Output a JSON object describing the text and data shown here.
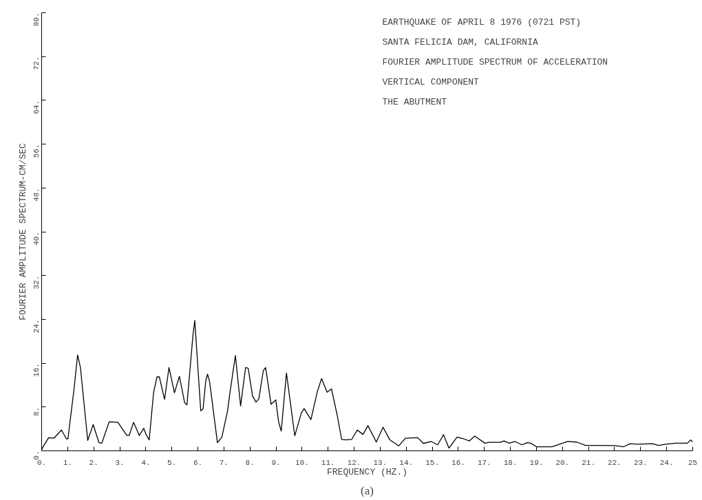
{
  "chart_data": {
    "type": "line",
    "xlabel": "FREQUENCY (HZ.)",
    "ylabel": "FOURIER AMPLITUDE SPECTRUM-CM/SEC",
    "annotations": [
      "EARTHQUAKE OF APRIL 8 1976 (0721 PST)",
      "SANTA FELICIA DAM, CALIFORNIA",
      "FOURIER AMPLITUDE SPECTRUM OF ACCELERATION",
      "VERTICAL COMPONENT",
      "THE ABUTMENT",
      "(a)"
    ],
    "series": [
      {
        "color": "#000000",
        "x": [
          0.0,
          0.05,
          0.27,
          0.47,
          0.76,
          0.95,
          1.01,
          1.25,
          1.38,
          1.49,
          1.77,
          1.98,
          2.2,
          2.31,
          2.59,
          2.7,
          2.93,
          3.27,
          3.36,
          3.53,
          3.75,
          3.92,
          4.0,
          4.13,
          4.3,
          4.43,
          4.52,
          4.69,
          4.72,
          4.89,
          5.1,
          5.29,
          5.49,
          5.58,
          5.81,
          5.88,
          6.11,
          6.2,
          6.3,
          6.37,
          6.45,
          6.75,
          6.92,
          7.14,
          7.22,
          7.44,
          7.64,
          7.83,
          7.93,
          8.1,
          8.23,
          8.34,
          8.51,
          8.6,
          8.81,
          8.99,
          9.1,
          9.2,
          9.4,
          9.72,
          9.97,
          10.08,
          10.34,
          10.58,
          10.75,
          10.96,
          11.13,
          11.35,
          11.52,
          11.69,
          11.91,
          12.12,
          12.34,
          12.53,
          12.85,
          13.11,
          13.37,
          13.71,
          13.97,
          14.44,
          14.66,
          14.96,
          15.21,
          15.43,
          15.64,
          15.95,
          16.2,
          16.42,
          16.63,
          17.02,
          17.19,
          17.62,
          17.75,
          17.96,
          18.18,
          18.44,
          18.65,
          18.78,
          19.0,
          19.6,
          20.2,
          20.54,
          20.89,
          21.4,
          22.0,
          22.35,
          22.6,
          22.86,
          23.46,
          23.68,
          23.98,
          24.33,
          24.8,
          24.92,
          25.0
        ],
        "values": [
          0.2,
          0.7,
          2.4,
          2.3,
          3.8,
          2.2,
          2.2,
          11.5,
          17.5,
          15.2,
          1.9,
          4.8,
          1.5,
          1.4,
          5.25,
          5.3,
          5.2,
          2.8,
          2.8,
          5.2,
          2.8,
          4.1,
          3.1,
          2.0,
          10.7,
          13.5,
          13.5,
          10.0,
          9.4,
          15.2,
          10.6,
          13.6,
          8.8,
          8.4,
          21.1,
          23.8,
          7.3,
          7.7,
          12.75,
          14.0,
          12.6,
          1.5,
          2.5,
          7.3,
          10.25,
          17.4,
          8.2,
          15.2,
          15.1,
          10.0,
          8.9,
          9.5,
          14.6,
          15.2,
          8.5,
          9.3,
          5.25,
          3.6,
          14.2,
          2.75,
          6.9,
          7.7,
          5.7,
          10.7,
          13.2,
          10.7,
          11.3,
          6.5,
          2.1,
          2.0,
          2.1,
          3.8,
          3.0,
          4.6,
          1.6,
          4.3,
          2.0,
          0.9,
          2.3,
          2.4,
          1.35,
          1.7,
          1.1,
          2.95,
          0.5,
          2.5,
          2.2,
          1.8,
          2.7,
          1.4,
          1.55,
          1.55,
          1.8,
          1.4,
          1.7,
          1.1,
          1.5,
          1.4,
          0.75,
          0.75,
          1.7,
          1.6,
          1.0,
          1.0,
          0.95,
          0.75,
          1.3,
          1.2,
          1.3,
          1.0,
          1.2,
          1.4,
          1.4,
          2.0,
          1.6
        ]
      }
    ],
    "xlim": [
      0,
      25
    ],
    "ylim": [
      0,
      80
    ],
    "xticks": [
      {
        "value": 0,
        "label": "0."
      },
      {
        "value": 1,
        "label": "1."
      },
      {
        "value": 2,
        "label": "2."
      },
      {
        "value": 3,
        "label": "3."
      },
      {
        "value": 4,
        "label": "4."
      },
      {
        "value": 5,
        "label": "5."
      },
      {
        "value": 6,
        "label": "6."
      },
      {
        "value": 7,
        "label": "7."
      },
      {
        "value": 8,
        "label": "8."
      },
      {
        "value": 9,
        "label": "9."
      },
      {
        "value": 10,
        "label": "10."
      },
      {
        "value": 11,
        "label": "11."
      },
      {
        "value": 12,
        "label": "12."
      },
      {
        "value": 13,
        "label": "13."
      },
      {
        "value": 14,
        "label": "14."
      },
      {
        "value": 15,
        "label": "15."
      },
      {
        "value": 16,
        "label": "16."
      },
      {
        "value": 17,
        "label": "17."
      },
      {
        "value": 18,
        "label": "18."
      },
      {
        "value": 19,
        "label": "19."
      },
      {
        "value": 20,
        "label": "20."
      },
      {
        "value": 21,
        "label": "21."
      },
      {
        "value": 22,
        "label": "22."
      },
      {
        "value": 23,
        "label": "23."
      },
      {
        "value": 24,
        "label": "24."
      },
      25
    ],
    "yticks": [
      {
        "value": 0,
        "label": "0."
      },
      {
        "value": 8,
        "label": "8."
      },
      {
        "value": 16,
        "label": "16."
      },
      {
        "value": 24,
        "label": "24."
      },
      {
        "value": 32,
        "label": "32."
      },
      {
        "value": 40,
        "label": "40."
      },
      {
        "value": 48,
        "label": "48."
      },
      {
        "value": 56,
        "label": "56."
      },
      {
        "value": 64,
        "label": "64."
      },
      {
        "value": 72,
        "label": "72."
      },
      {
        "value": 80,
        "label": "80."
      }
    ],
    "grid": false,
    "marker": "none",
    "line_style": "solid"
  }
}
